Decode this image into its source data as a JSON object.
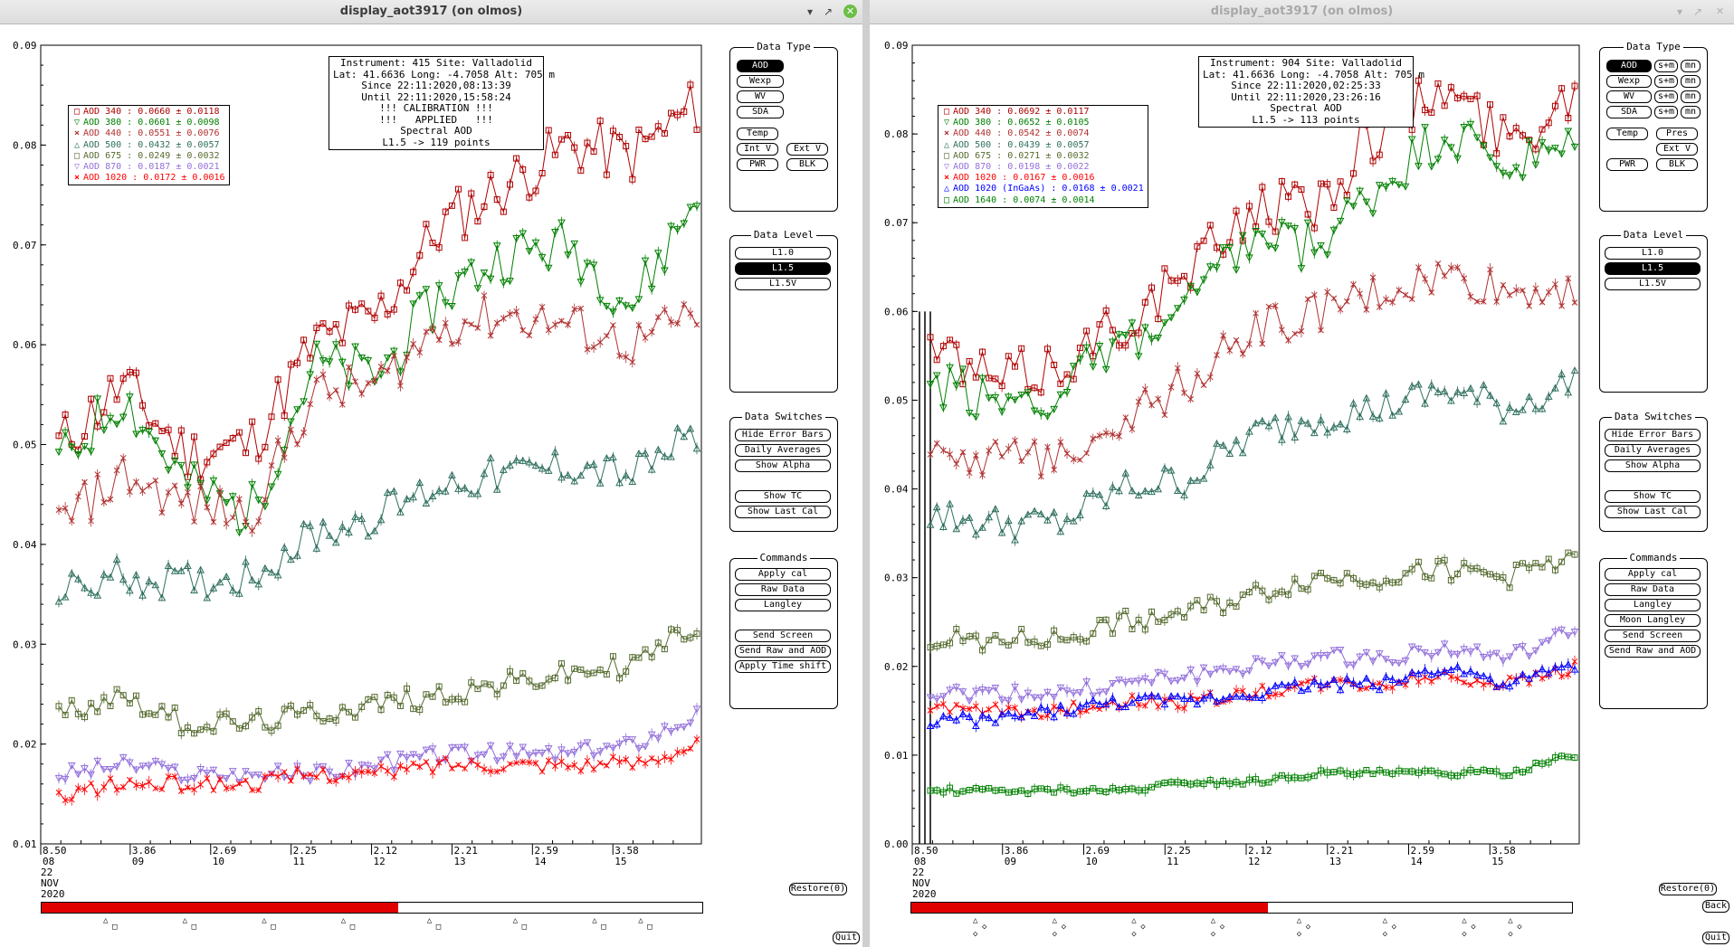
{
  "windows": [
    {
      "id": "left",
      "title": "display_aot3917 (on olmos)",
      "active": true,
      "info_box": [
        "Instrument: 415 Site: Valladolid",
        "Lat: 41.6636 Long: -4.7058 Alt: 705 m",
        "Since 22:11:2020,08:13:39",
        "Until 22:11:2020,15:58:24",
        "!!! CALIBRATION !!!",
        "!!!   APPLIED   !!!",
        "Spectral AOD",
        "L1.5 -> 119 points"
      ],
      "legend": [
        {
          "label": "AOD 340  : 0.0660 ± 0.0118",
          "color": "#b00000",
          "marker": "square"
        },
        {
          "label": "AOD 380  : 0.0601 ± 0.0098",
          "color": "#008000",
          "marker": "tri-down"
        },
        {
          "label": "AOD 440  : 0.0551 ± 0.0076",
          "color": "#b03030",
          "marker": "x"
        },
        {
          "label": "AOD 500  : 0.0432 ± 0.0057",
          "color": "#2f6f5f",
          "marker": "tri-up"
        },
        {
          "label": "AOD 675  : 0.0249 ± 0.0032",
          "color": "#556b2f",
          "marker": "square"
        },
        {
          "label": "AOD 870  : 0.0187 ± 0.0021",
          "color": "#9370db",
          "marker": "tri-down"
        },
        {
          "label": "AOD 1020  : 0.0172 ± 0.0016",
          "color": "#ff0000",
          "marker": "x"
        }
      ],
      "yticks": [
        "0.09",
        "0.08",
        "0.07",
        "0.06",
        "0.05",
        "0.04",
        "0.03",
        "0.02",
        "0.01"
      ],
      "xticks": [
        {
          "top": "8.50",
          "bottom": "08"
        },
        {
          "top": "3.86",
          "bottom": "09"
        },
        {
          "top": "2.69",
          "bottom": "10"
        },
        {
          "top": "2.25",
          "bottom": "11"
        },
        {
          "top": "2.12",
          "bottom": "12"
        },
        {
          "top": "2.21",
          "bottom": "13"
        },
        {
          "top": "2.59",
          "bottom": "14"
        },
        {
          "top": "3.58",
          "bottom": "15"
        }
      ],
      "date_label": [
        "22",
        "NOV",
        "2020"
      ],
      "data_type": {
        "title": "Data Type",
        "buttons": [
          "AOD",
          "Wexp",
          "WV",
          "SDA"
        ],
        "selected": "AOD",
        "extra": [
          "Temp",
          "Int V",
          "Ext V",
          "PWR",
          "BLK"
        ]
      },
      "data_level": {
        "title": "Data Level",
        "buttons": [
          "L1.0",
          "L1.5",
          "L1.5V"
        ],
        "selected": "L1.5"
      },
      "data_switches": {
        "title": "Data Switches",
        "buttons": [
          "Hide Error Bars",
          "Daily Averages",
          "Show Alpha",
          "Show TC",
          "Show Last Cal"
        ]
      },
      "commands": {
        "title": "Commands",
        "buttons": [
          "Apply cal",
          "Raw Data",
          "Langley",
          "Send Screen",
          "Send Raw and AOD",
          "Apply Time shift"
        ]
      },
      "bottom_buttons": [
        "Restore(0)",
        "Quit"
      ],
      "timeline_progress": 0.54
    },
    {
      "id": "right",
      "title": "display_aot3917 (on olmos)",
      "active": false,
      "info_box": [
        "Instrument: 904 Site: Valladolid",
        "Lat: 41.6636 Long: -4.7058 Alt: 705 m",
        "Since 22:11:2020,02:25:33",
        "Until 22:11:2020,23:26:16",
        "Spectral AOD",
        "L1.5 -> 113 points"
      ],
      "legend": [
        {
          "label": "AOD 340  : 0.0692 ± 0.0117",
          "color": "#b00000",
          "marker": "square"
        },
        {
          "label": "AOD 380  : 0.0652 ± 0.0105",
          "color": "#008000",
          "marker": "tri-down"
        },
        {
          "label": "AOD 440  : 0.0542 ± 0.0074",
          "color": "#b03030",
          "marker": "x"
        },
        {
          "label": "AOD 500  : 0.0439 ± 0.0057",
          "color": "#2f6f5f",
          "marker": "tri-up"
        },
        {
          "label": "AOD 675  : 0.0271 ± 0.0032",
          "color": "#556b2f",
          "marker": "square"
        },
        {
          "label": "AOD 870  : 0.0198 ± 0.0022",
          "color": "#9370db",
          "marker": "tri-down"
        },
        {
          "label": "AOD 1020  : 0.0167 ± 0.0016",
          "color": "#ff0000",
          "marker": "x"
        },
        {
          "label": "AOD 1020 (InGaAs)  : 0.0168 ± 0.0021",
          "color": "#0000ff",
          "marker": "tri-up"
        },
        {
          "label": "AOD 1640  : 0.0074 ± 0.0014",
          "color": "#008000",
          "marker": "square"
        }
      ],
      "yticks": [
        "0.09",
        "0.08",
        "0.07",
        "0.06",
        "0.05",
        "0.04",
        "0.03",
        "0.02",
        "0.01",
        "0.00"
      ],
      "xticks": [
        {
          "top": "8.50",
          "bottom": "08"
        },
        {
          "top": "3.86",
          "bottom": "09"
        },
        {
          "top": "2.69",
          "bottom": "10"
        },
        {
          "top": "2.25",
          "bottom": "11"
        },
        {
          "top": "2.12",
          "bottom": "12"
        },
        {
          "top": "2.21",
          "bottom": "13"
        },
        {
          "top": "2.59",
          "bottom": "14"
        },
        {
          "top": "3.58",
          "bottom": "15"
        }
      ],
      "date_label": [
        "22",
        "NOV",
        "2020"
      ],
      "data_type": {
        "title": "Data Type",
        "buttons": [
          "AOD",
          "Wexp",
          "WV",
          "SDA"
        ],
        "selected": "AOD",
        "sm": [
          "s+m",
          "mn"
        ],
        "extra": [
          "Temp",
          "Pres",
          "Ext V",
          "PWR",
          "BLK"
        ]
      },
      "data_level": {
        "title": "Data Level",
        "buttons": [
          "L1.0",
          "L1.5",
          "L1.5V"
        ],
        "selected": "L1.5"
      },
      "data_switches": {
        "title": "Data Switches",
        "buttons": [
          "Hide Error Bars",
          "Daily Averages",
          "Show Alpha",
          "Show TC",
          "Show Last Cal"
        ]
      },
      "commands": {
        "title": "Commands",
        "buttons": [
          "Apply cal",
          "Raw Data",
          "Langley",
          "Moon Langley",
          "Send Screen",
          "Send Raw and AOD"
        ]
      },
      "bottom_buttons": [
        "Restore(0)",
        "Back",
        "Quit"
      ],
      "timeline_progress": 0.54
    }
  ],
  "chart_data": [
    {
      "type": "line",
      "title": "",
      "xlabel": "",
      "ylabel": "",
      "ylim": [
        0.01,
        0.09
      ],
      "x": [
        0,
        10,
        20,
        30,
        40,
        50,
        60,
        70,
        80,
        90,
        100
      ],
      "series": [
        {
          "name": "AOD 340",
          "color": "#b00000",
          "marker": "square",
          "values": [
            0.05,
            0.056,
            0.049,
            0.05,
            0.06,
            0.063,
            0.072,
            0.076,
            0.08,
            0.079,
            0.084
          ]
        },
        {
          "name": "AOD 380",
          "color": "#008000",
          "marker": "tri-down",
          "values": [
            0.048,
            0.055,
            0.046,
            0.043,
            0.058,
            0.057,
            0.065,
            0.069,
            0.07,
            0.064,
            0.075
          ]
        },
        {
          "name": "AOD 440",
          "color": "#b03030",
          "marker": "x",
          "values": [
            0.042,
            0.047,
            0.044,
            0.043,
            0.055,
            0.056,
            0.062,
            0.063,
            0.062,
            0.06,
            0.063
          ]
        },
        {
          "name": "AOD 500",
          "color": "#2f6f5f",
          "marker": "tri-up",
          "values": [
            0.035,
            0.037,
            0.036,
            0.037,
            0.041,
            0.043,
            0.046,
            0.047,
            0.048,
            0.047,
            0.051
          ]
        },
        {
          "name": "AOD 675",
          "color": "#556b2f",
          "marker": "square",
          "values": [
            0.023,
            0.025,
            0.022,
            0.022,
            0.023,
            0.024,
            0.025,
            0.026,
            0.027,
            0.028,
            0.032
          ]
        },
        {
          "name": "AOD 870",
          "color": "#9370db",
          "marker": "tri-down",
          "values": [
            0.017,
            0.018,
            0.017,
            0.017,
            0.017,
            0.018,
            0.019,
            0.019,
            0.019,
            0.02,
            0.023
          ]
        },
        {
          "name": "AOD 1020",
          "color": "#ff0000",
          "marker": "x",
          "values": [
            0.015,
            0.016,
            0.016,
            0.016,
            0.017,
            0.017,
            0.018,
            0.018,
            0.018,
            0.018,
            0.02
          ]
        }
      ]
    },
    {
      "type": "line",
      "title": "",
      "xlabel": "",
      "ylabel": "",
      "ylim": [
        0.0,
        0.09
      ],
      "x": [
        0,
        10,
        20,
        30,
        40,
        50,
        60,
        70,
        80,
        90,
        100
      ],
      "series": [
        {
          "name": "AOD 340",
          "color": "#b00000",
          "marker": "square",
          "values": [
            0.056,
            0.052,
            0.054,
            0.059,
            0.064,
            0.072,
            0.072,
            0.081,
            0.085,
            0.079,
            0.085
          ]
        },
        {
          "name": "AOD 380",
          "color": "#008000",
          "marker": "tri-down",
          "values": [
            0.052,
            0.05,
            0.051,
            0.056,
            0.06,
            0.068,
            0.067,
            0.074,
            0.08,
            0.076,
            0.078
          ]
        },
        {
          "name": "AOD 440",
          "color": "#b03030",
          "marker": "x",
          "values": [
            0.045,
            0.043,
            0.044,
            0.048,
            0.052,
            0.058,
            0.06,
            0.062,
            0.064,
            0.062,
            0.063
          ]
        },
        {
          "name": "AOD 500",
          "color": "#2f6f5f",
          "marker": "tri-up",
          "values": [
            0.037,
            0.036,
            0.036,
            0.04,
            0.041,
            0.046,
            0.048,
            0.049,
            0.051,
            0.049,
            0.052
          ]
        },
        {
          "name": "AOD 675",
          "color": "#556b2f",
          "marker": "square",
          "values": [
            0.023,
            0.023,
            0.023,
            0.025,
            0.026,
            0.028,
            0.03,
            0.03,
            0.031,
            0.03,
            0.033
          ]
        },
        {
          "name": "AOD 870",
          "color": "#9370db",
          "marker": "tri-down",
          "values": [
            0.017,
            0.017,
            0.017,
            0.018,
            0.019,
            0.02,
            0.021,
            0.021,
            0.022,
            0.021,
            0.024
          ]
        },
        {
          "name": "AOD 1020",
          "color": "#ff0000",
          "marker": "x",
          "values": [
            0.015,
            0.015,
            0.015,
            0.016,
            0.016,
            0.017,
            0.018,
            0.018,
            0.019,
            0.018,
            0.02
          ]
        },
        {
          "name": "AOD 1020 (InGaAs)",
          "color": "#0000ff",
          "marker": "tri-up",
          "values": [
            0.014,
            0.014,
            0.015,
            0.016,
            0.016,
            0.017,
            0.018,
            0.018,
            0.02,
            0.018,
            0.02
          ]
        },
        {
          "name": "AOD 1640",
          "color": "#008000",
          "marker": "square",
          "values": [
            0.006,
            0.006,
            0.006,
            0.006,
            0.007,
            0.007,
            0.008,
            0.008,
            0.008,
            0.008,
            0.01
          ]
        }
      ]
    }
  ]
}
